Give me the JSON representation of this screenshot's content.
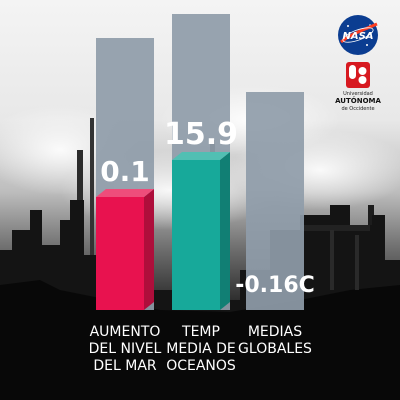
{
  "chart_data": {
    "type": "bar",
    "categories": [
      "AUMENTO DEL NIVEL DEL MAR",
      "TEMP MEDIA DE OCEANOS",
      "MEDIAS GLOBALES"
    ],
    "category_lines": [
      [
        "AUMENTO",
        "DEL NIVEL",
        "DEL MAR"
      ],
      [
        "TEMP",
        "MEDIA DE",
        "OCEANOS"
      ],
      [
        "MEDIAS",
        "GLOBALES"
      ]
    ],
    "values": [
      0.1,
      15.9,
      -0.16
    ],
    "value_labels": [
      "0.1",
      "15.9",
      "-0.16C"
    ],
    "colors": [
      "#e8124f",
      "#17a99a",
      "#7c8a98"
    ],
    "title": "",
    "xlabel": "",
    "ylabel": ""
  },
  "logos": {
    "nasa": "NASA",
    "university_line1": "Universidad",
    "university_line2": "AUTÓNOMA",
    "university_line3": "de Occidente",
    "university_mark": "UAO",
    "university_color": "#d71920",
    "nasa_color": "#0b3d91"
  }
}
